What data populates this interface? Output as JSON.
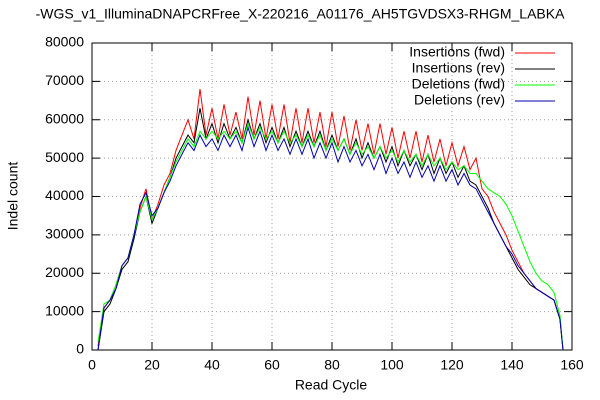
{
  "chart_data": {
    "type": "line",
    "title": "-WGS_v1_IlluminaDNAPCRFree_X-220216_A01176_AH5TGVDSX3-RHGM_LABKA",
    "xlabel": "Read Cycle",
    "ylabel": "Indel count",
    "xlim": [
      0,
      160
    ],
    "xticks": [
      0,
      20,
      40,
      60,
      80,
      100,
      120,
      140,
      160
    ],
    "ylim": [
      0,
      80000
    ],
    "yticks": [
      0,
      10000,
      20000,
      30000,
      40000,
      50000,
      60000,
      70000,
      80000
    ],
    "grid": true,
    "legend": "top right",
    "x": [
      2,
      4,
      6,
      8,
      10,
      12,
      14,
      16,
      18,
      20,
      22,
      24,
      26,
      28,
      30,
      32,
      34,
      36,
      38,
      40,
      42,
      44,
      46,
      48,
      50,
      52,
      54,
      56,
      58,
      60,
      62,
      64,
      66,
      68,
      70,
      72,
      74,
      76,
      78,
      80,
      82,
      84,
      86,
      88,
      90,
      92,
      94,
      96,
      98,
      100,
      102,
      104,
      106,
      108,
      110,
      112,
      114,
      116,
      118,
      120,
      122,
      124,
      126,
      128,
      130,
      132,
      134,
      136,
      138,
      140,
      142,
      144,
      146,
      148,
      150,
      152,
      154,
      156,
      157
    ],
    "series": [
      {
        "name": "Insertions (fwd)",
        "color": "#ff0000",
        "values": [
          1000,
          11000,
          13000,
          17000,
          22000,
          24000,
          30000,
          37000,
          42000,
          34000,
          38000,
          43000,
          46000,
          52000,
          56000,
          60000,
          55000,
          68000,
          56000,
          63000,
          55000,
          64000,
          56000,
          62000,
          55000,
          66000,
          56000,
          65000,
          55000,
          64000,
          55000,
          64000,
          54000,
          63000,
          54000,
          63000,
          54000,
          62000,
          53000,
          62000,
          53000,
          61000,
          52000,
          60000,
          52000,
          59000,
          51000,
          59000,
          51000,
          58000,
          50000,
          57000,
          50000,
          57000,
          49000,
          56000,
          49000,
          55000,
          48000,
          54000,
          48000,
          53000,
          47000,
          50000,
          42000,
          40000,
          36000,
          33000,
          30000,
          26000,
          23000,
          20000,
          18000,
          16000,
          15000,
          14000,
          13000,
          8000,
          0
        ]
      },
      {
        "name": "Insertions (rev)",
        "color": "#000000",
        "values": [
          0,
          10000,
          12000,
          16000,
          21000,
          23000,
          29000,
          36000,
          40000,
          33000,
          37000,
          41000,
          45000,
          50000,
          53000,
          56000,
          54000,
          63000,
          55000,
          59000,
          54000,
          59000,
          55000,
          58000,
          54000,
          60000,
          55000,
          59000,
          54000,
          58000,
          54000,
          58000,
          53000,
          57000,
          53000,
          57000,
          53000,
          57000,
          52000,
          56000,
          52000,
          55000,
          51000,
          55000,
          50000,
          54000,
          50000,
          53000,
          49000,
          53000,
          48000,
          52000,
          48000,
          51000,
          47000,
          51000,
          46000,
          50000,
          46000,
          49000,
          45000,
          48000,
          44000,
          43000,
          40000,
          37000,
          33000,
          30000,
          27000,
          24000,
          21000,
          19000,
          17000,
          16000,
          15000,
          14000,
          13000,
          8000,
          0
        ]
      },
      {
        "name": "Deletions (fwd)",
        "color": "#00ff00",
        "values": [
          2000,
          12000,
          13000,
          17000,
          22000,
          24000,
          30000,
          36000,
          40000,
          34000,
          37000,
          41000,
          45000,
          49000,
          52000,
          55000,
          53000,
          57000,
          55000,
          57000,
          55000,
          57000,
          55000,
          57000,
          54000,
          59000,
          55000,
          58000,
          55000,
          57000,
          54000,
          57000,
          54000,
          56000,
          53000,
          56000,
          53000,
          56000,
          52000,
          55000,
          52000,
          55000,
          51000,
          54000,
          51000,
          53000,
          50000,
          53000,
          50000,
          52000,
          49000,
          52000,
          49000,
          51000,
          48000,
          51000,
          48000,
          50000,
          47000,
          49000,
          47000,
          48000,
          46000,
          46000,
          44000,
          42000,
          41000,
          40000,
          38000,
          35000,
          31000,
          27000,
          23000,
          20000,
          18000,
          17000,
          15000,
          9000,
          0
        ]
      },
      {
        "name": "Deletions (rev)",
        "color": "#0000b0",
        "values": [
          0,
          11000,
          13000,
          16000,
          22000,
          24000,
          30000,
          38000,
          41000,
          35000,
          37000,
          41000,
          44000,
          48000,
          51000,
          54000,
          52000,
          56000,
          53000,
          55000,
          52000,
          56000,
          53000,
          56000,
          52000,
          58000,
          53000,
          57000,
          52000,
          56000,
          52000,
          55000,
          51000,
          55000,
          51000,
          55000,
          50000,
          54000,
          50000,
          54000,
          49000,
          53000,
          49000,
          52000,
          48000,
          51000,
          47000,
          51000,
          46000,
          50000,
          46000,
          49000,
          45000,
          49000,
          45000,
          48000,
          44000,
          48000,
          44000,
          47000,
          43000,
          46000,
          43000,
          42000,
          39000,
          36000,
          33000,
          30000,
          27000,
          25000,
          22000,
          20000,
          18000,
          16000,
          15000,
          14000,
          13000,
          8000,
          0
        ]
      }
    ]
  }
}
